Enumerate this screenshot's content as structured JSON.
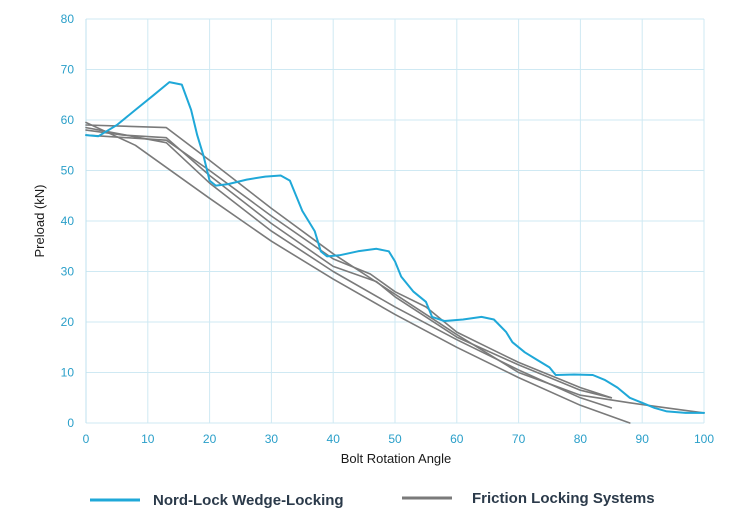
{
  "chart_data": {
    "type": "line",
    "title": "",
    "xlabel": "Bolt Rotation Angle",
    "ylabel": "Preload (kN)",
    "xlim": [
      0,
      100
    ],
    "ylim": [
      0,
      80
    ],
    "x_ticks": [
      "0",
      "10",
      "20",
      "30",
      "40",
      "50",
      "60",
      "70",
      "80",
      "90",
      "100"
    ],
    "y_ticks": [
      "0",
      "10",
      "20",
      "30",
      "40",
      "50",
      "60",
      "70",
      "80"
    ],
    "grid": true,
    "legend_position": "bottom",
    "series": [
      {
        "name": "Nord-Lock Wedge-Locking",
        "color": "#1fa8d8",
        "points": [
          [
            0,
            57
          ],
          [
            2,
            56.8
          ],
          [
            5,
            59
          ],
          [
            8,
            62
          ],
          [
            11,
            65
          ],
          [
            13.5,
            67.5
          ],
          [
            15.5,
            67
          ],
          [
            17,
            62
          ],
          [
            18,
            57
          ],
          [
            19,
            53
          ],
          [
            20,
            48
          ],
          [
            21,
            47
          ],
          [
            23,
            47.3
          ],
          [
            26,
            48.2
          ],
          [
            29,
            48.8
          ],
          [
            31.5,
            49
          ],
          [
            33,
            48
          ],
          [
            34,
            45
          ],
          [
            35,
            42
          ],
          [
            37,
            38
          ],
          [
            38,
            34
          ],
          [
            39,
            33
          ],
          [
            41,
            33.2
          ],
          [
            44,
            34
          ],
          [
            47,
            34.5
          ],
          [
            49,
            34
          ],
          [
            50,
            32
          ],
          [
            51,
            29
          ],
          [
            53,
            26
          ],
          [
            55,
            24
          ],
          [
            56,
            21
          ],
          [
            58,
            20.2
          ],
          [
            61,
            20.5
          ],
          [
            64,
            21
          ],
          [
            66,
            20.5
          ],
          [
            68,
            18
          ],
          [
            69,
            16
          ],
          [
            71,
            14
          ],
          [
            73,
            12.5
          ],
          [
            75,
            11
          ],
          [
            76,
            9.5
          ],
          [
            79,
            9.6
          ],
          [
            82,
            9.5
          ],
          [
            84,
            8.5
          ],
          [
            86,
            7
          ],
          [
            88,
            5
          ],
          [
            90,
            4
          ],
          [
            92,
            3
          ],
          [
            94,
            2.3
          ],
          [
            97,
            2
          ],
          [
            100,
            2
          ]
        ]
      },
      {
        "name": "Friction Locking Systems",
        "color": "#7a7a7a",
        "lines": [
          [
            [
              0,
              59.5
            ],
            [
              8,
              55
            ],
            [
              20,
              44.5
            ],
            [
              30,
              36
            ],
            [
              40,
              28.5
            ],
            [
              50,
              21.5
            ],
            [
              60,
              15
            ],
            [
              70,
              9
            ],
            [
              80,
              3.5
            ],
            [
              88,
              0
            ]
          ],
          [
            [
              0,
              59
            ],
            [
              13,
              58.5
            ],
            [
              20,
              52
            ],
            [
              30,
              42.5
            ],
            [
              40,
              33.5
            ],
            [
              50,
              25.5
            ],
            [
              60,
              17.5
            ],
            [
              70,
              10
            ],
            [
              80,
              5.5
            ],
            [
              88,
              4
            ],
            [
              94,
              3
            ],
            [
              100,
              2
            ]
          ],
          [
            [
              0,
              57
            ],
            [
              13,
              56
            ],
            [
              20,
              50
            ],
            [
              30,
              41
            ],
            [
              40,
              32.5
            ],
            [
              46,
              29.5
            ],
            [
              50,
              26
            ],
            [
              55,
              23
            ],
            [
              60,
              18
            ],
            [
              65,
              15
            ],
            [
              70,
              12
            ],
            [
              75,
              9.5
            ],
            [
              80,
              7
            ],
            [
              85,
              5
            ]
          ],
          [
            [
              0,
              58
            ],
            [
              6,
              57
            ],
            [
              13,
              56.5
            ],
            [
              20,
              49
            ],
            [
              30,
              39.5
            ],
            [
              40,
              31
            ],
            [
              47,
              28
            ],
            [
              50,
              25
            ],
            [
              55,
              21
            ],
            [
              60,
              17
            ],
            [
              70,
              11.5
            ],
            [
              80,
              6.5
            ],
            [
              85,
              5
            ]
          ],
          [
            [
              0,
              58.5
            ],
            [
              13,
              55.5
            ],
            [
              20,
              47.5
            ],
            [
              30,
              38
            ],
            [
              40,
              30
            ],
            [
              50,
              23
            ],
            [
              60,
              16.5
            ],
            [
              70,
              10.5
            ],
            [
              80,
              5
            ],
            [
              85,
              3
            ]
          ]
        ]
      }
    ]
  },
  "legend": [
    {
      "label": "Nord-Lock Wedge-Locking",
      "color": "#1fa8d8"
    },
    {
      "label": "Friction Locking Systems",
      "color": "#7a7a7a"
    }
  ]
}
